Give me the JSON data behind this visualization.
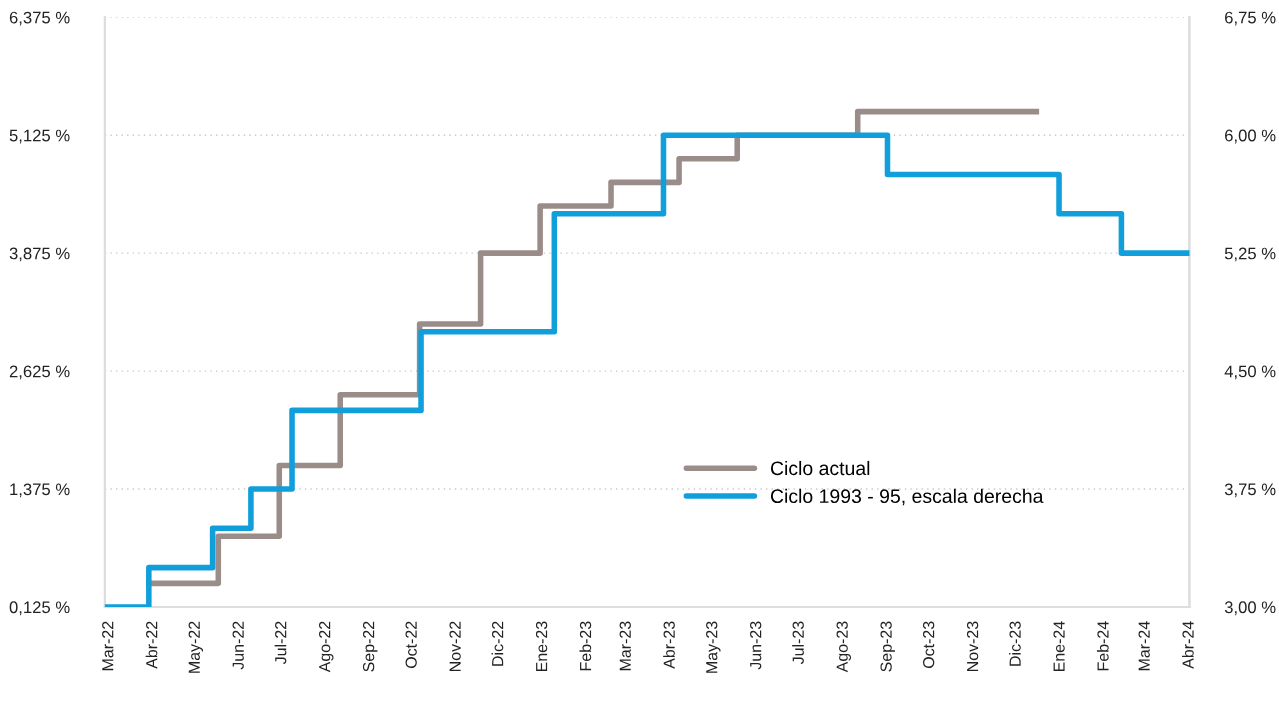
{
  "chart_data": {
    "type": "step",
    "x": [
      "2022-03-29",
      "2022-05-17",
      "2022-06-29",
      "2022-08-11",
      "2022-10-06",
      "2022-11-18",
      "2022-12-30",
      "2023-02-18",
      "2023-04-07",
      "2023-05-18",
      "2023-08-11",
      "2023-12-15"
    ],
    "series": [
      {
        "name": "Ciclo actual",
        "color": "#9a8c89",
        "values": [
          0.375,
          0.875,
          1.625,
          2.375,
          3.125,
          3.875,
          4.375,
          4.625,
          4.875,
          5.125,
          5.375,
          5.375
        ]
      },
      {
        "name": "Ciclo 1993 - 95, escala derecha",
        "color": "#109fdb",
        "axis": "y2",
        "x": [
          "2022-02-26",
          "2022-03-29",
          "2022-05-13",
          "2022-06-09",
          "2022-07-08",
          "2022-10-07",
          "2023-01-09",
          "2023-03-27",
          "2023-09-01",
          "2023-12-31",
          "2024-02-13",
          "2024-04-01"
        ],
        "values": [
          3.0,
          3.25,
          3.5,
          3.75,
          4.25,
          4.75,
          5.5,
          6.0,
          5.75,
          5.5,
          5.25,
          5.25
        ]
      }
    ],
    "xlim": [
      "2022-02-26",
      "2024-04-01"
    ],
    "xticks": [
      {
        "value": "2022-03-01",
        "label": "Mar-22"
      },
      {
        "value": "2022-04-01",
        "label": "Abr-22"
      },
      {
        "value": "2022-05-01",
        "label": "May-22"
      },
      {
        "value": "2022-06-01",
        "label": "Jun-22"
      },
      {
        "value": "2022-07-01",
        "label": "Jul-22"
      },
      {
        "value": "2022-08-01",
        "label": "Ago-22"
      },
      {
        "value": "2022-09-01",
        "label": "Sep-22"
      },
      {
        "value": "2022-10-01",
        "label": "Oct-22"
      },
      {
        "value": "2022-11-01",
        "label": "Nov-22"
      },
      {
        "value": "2022-12-01",
        "label": "Dic-22"
      },
      {
        "value": "2023-01-01",
        "label": "Ene-23"
      },
      {
        "value": "2023-02-01",
        "label": "Feb-23"
      },
      {
        "value": "2023-03-01",
        "label": "Mar-23"
      },
      {
        "value": "2023-04-01",
        "label": "Abr-23"
      },
      {
        "value": "2023-05-01",
        "label": "May-23"
      },
      {
        "value": "2023-06-01",
        "label": "Jun-23"
      },
      {
        "value": "2023-07-01",
        "label": "Jul-23"
      },
      {
        "value": "2023-08-01",
        "label": "Ago-23"
      },
      {
        "value": "2023-09-01",
        "label": "Sep-23"
      },
      {
        "value": "2023-10-01",
        "label": "Oct-23"
      },
      {
        "value": "2023-11-01",
        "label": "Nov-23"
      },
      {
        "value": "2023-12-01",
        "label": "Dic-23"
      },
      {
        "value": "2024-01-01",
        "label": "Ene-24"
      },
      {
        "value": "2024-02-01",
        "label": "Feb-24"
      },
      {
        "value": "2024-03-01",
        "label": "Mar-24"
      },
      {
        "value": "2024-04-01",
        "label": "Abr-24"
      }
    ],
    "ylim": [
      0.125,
      6.375
    ],
    "yticks": [
      {
        "value": 0.125,
        "label": "0,125 %"
      },
      {
        "value": 1.375,
        "label": "1,375 %"
      },
      {
        "value": 2.625,
        "label": "2,625 %"
      },
      {
        "value": 3.875,
        "label": "3,875 %"
      },
      {
        "value": 5.125,
        "label": "5,125 %"
      },
      {
        "value": 6.375,
        "label": "6,375 %"
      }
    ],
    "y2lim": [
      3.0,
      6.75
    ],
    "y2ticks": [
      {
        "value": 3.0,
        "label": "3,00 %"
      },
      {
        "value": 3.75,
        "label": "3,75 %"
      },
      {
        "value": 4.5,
        "label": "4,50 %"
      },
      {
        "value": 5.25,
        "label": "5,25 %"
      },
      {
        "value": 6.0,
        "label": "6,00 %"
      },
      {
        "value": 6.75,
        "label": "6,75 %"
      }
    ],
    "grid": "y",
    "legend": "bottom right",
    "line_style": "solid",
    "marker": "none"
  }
}
